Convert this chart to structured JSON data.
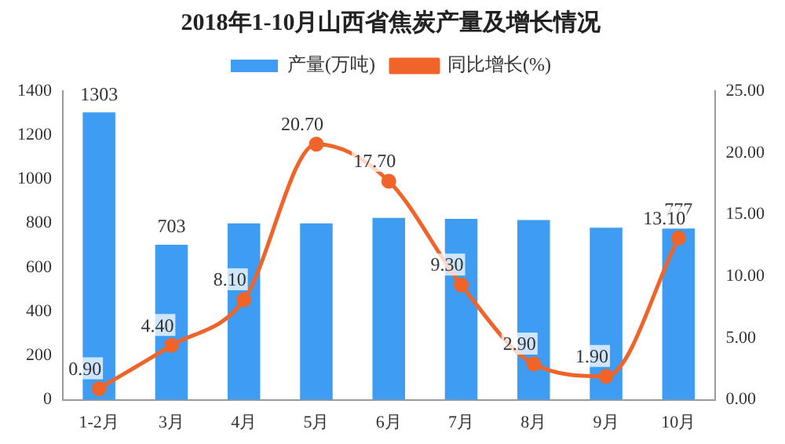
{
  "chart_data": {
    "type": "bar",
    "title": "2018年1-10月山西省焦炭产量及增长情况",
    "categories": [
      "1-2月",
      "3月",
      "4月",
      "5月",
      "6月",
      "7月",
      "8月",
      "9月",
      "10月"
    ],
    "series": [
      {
        "name": "产量(万吨)",
        "color": "#3e9cf2",
        "values": [
          1303,
          703,
          800,
          800,
          825,
          820,
          815,
          780,
          777
        ],
        "value_labels": [
          "1303",
          "703",
          null,
          null,
          null,
          null,
          null,
          null,
          "777"
        ]
      },
      {
        "name": "同比增长(%)",
        "type": "line",
        "axis": "y2",
        "color": "#f0642a",
        "marker": "circle",
        "values": [
          0.9,
          4.4,
          8.1,
          20.7,
          17.7,
          9.3,
          2.9,
          1.9,
          13.1
        ],
        "value_labels": [
          "0.90",
          "4.40",
          "8.10",
          "20.70",
          "17.70",
          "9.30",
          "2.90",
          "1.90",
          "13.10"
        ]
      }
    ],
    "ylim": [
      0,
      1400
    ],
    "yticks": [
      0,
      200,
      400,
      600,
      800,
      1000,
      1200,
      1400
    ],
    "y2lim": [
      0,
      25
    ],
    "y2ticks": [
      {
        "value": 0,
        "label": "0.00"
      },
      {
        "value": 5,
        "label": "5.00"
      },
      {
        "value": 10,
        "label": "10.00"
      },
      {
        "value": 15,
        "label": "15.00"
      },
      {
        "value": 20,
        "label": "20.00"
      },
      {
        "value": 25,
        "label": "25.00"
      }
    ],
    "legend": "top",
    "grid": false
  }
}
